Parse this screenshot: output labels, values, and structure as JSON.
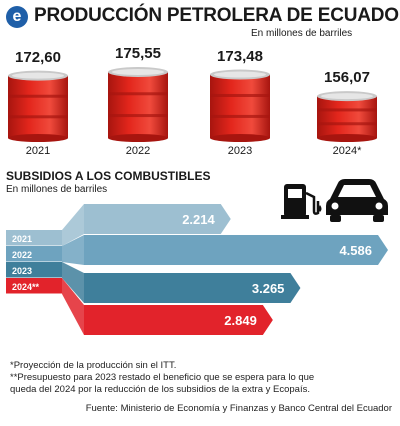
{
  "header": {
    "title": "PRODUCCIÓN PETROLERA DE ECUADOR",
    "logo_letter": "e"
  },
  "production": {
    "unit": "En millones de barriles"
  },
  "subsidies": {
    "title": "SUBSIDIOS A LOS COMBUSTIBLES",
    "unit": "En millones de barriles"
  },
  "chart_data": [
    {
      "type": "bar",
      "title": "PRODUCCIÓN PETROLERA DE ECUADOR",
      "subtitle": "En millones de barriles",
      "categories": [
        "2021",
        "2022",
        "2023",
        "2024*"
      ],
      "values": [
        172.6,
        175.55,
        173.48,
        156.07
      ],
      "value_labels": [
        "172,60",
        "175,55",
        "173,48",
        "156,07"
      ],
      "colors": {
        "barrel": "#e3261c",
        "barrel_dark": "#a7150f",
        "lid": "#c9c9c9"
      }
    },
    {
      "type": "bar",
      "title": "SUBSIDIOS A LOS COMBUSTIBLES",
      "subtitle": "En millones de barriles",
      "categories": [
        "2021",
        "2022",
        "2023",
        "2024**"
      ],
      "values": [
        2214,
        4586,
        3265,
        2849
      ],
      "value_labels": [
        "2.214",
        "4.586",
        "3.265",
        "2.849"
      ],
      "colors": [
        "#9dbfd1",
        "#6ea3bf",
        "#3f7f9b",
        "#e2232b"
      ]
    }
  ],
  "icons": [
    "fuel-pump-icon",
    "car-icon"
  ],
  "notes": [
    "*Proyección de la producción sin el ITT.",
    "**Presupuesto para 2023 restado el beneficio que se espera para lo que",
    "queda del 2024 por la reducción de los subsidios de la extra y Ecopaís."
  ],
  "source": "Fuente: Ministerio de Economía y Finanzas y Banco Central del Ecuador"
}
